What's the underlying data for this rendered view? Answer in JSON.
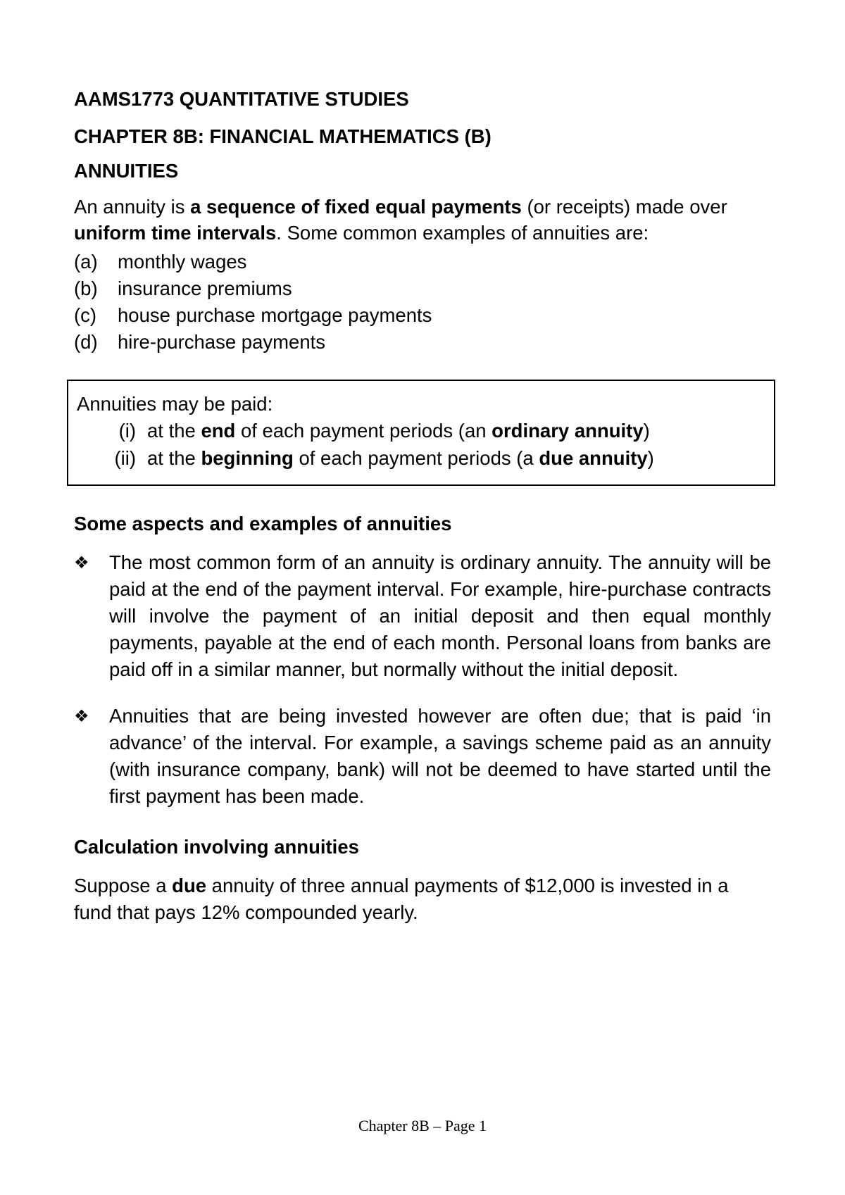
{
  "course_code": "AAMS1773 QUANTITATIVE STUDIES",
  "chapter_title": "CHAPTER 8B: FINANCIAL MATHEMATICS (B)",
  "topic": "ANNUITIES",
  "intro": {
    "prefix": "An annuity is ",
    "bold1": "a sequence of fixed equal payments",
    "mid1": " (or receipts) made over ",
    "bold2": "uniform time intervals",
    "suffix": ". Some common examples of annuities are:"
  },
  "examples": [
    {
      "marker": "(a)",
      "text": "monthly wages"
    },
    {
      "marker": "(b)",
      "text": "insurance premiums"
    },
    {
      "marker": "(c)",
      "text": "house purchase mortgage payments"
    },
    {
      "marker": "(d)",
      "text": "hire-purchase payments"
    }
  ],
  "box": {
    "lead": "Annuities may be paid:",
    "items": [
      {
        "marker": "(i)",
        "prefix": "at the ",
        "bold1": "end",
        "mid": " of each payment periods (an ",
        "bold2": "ordinary annuity",
        "suffix": ")"
      },
      {
        "marker": "(ii)",
        "prefix": "at the ",
        "bold1": "beginning",
        "mid": " of each payment periods (a ",
        "bold2": "due annuity",
        "suffix": ")"
      }
    ]
  },
  "aspects_heading": "Some aspects and examples of annuities",
  "bullets": [
    "The most common form of an annuity is ordinary annuity. The annuity will be paid at the end of the payment interval. For example, hire-purchase contracts will involve the payment of an initial deposit and then equal monthly payments, payable at the end of each month. Personal loans from banks are paid off in a similar manner, but normally without the initial deposit.",
    "Annuities that are being invested however are often due; that is paid ‘in advance’ of the interval. For example, a savings scheme paid as an annuity (with insurance company, bank) will not be deemed to have started until the first payment has been made."
  ],
  "calc_heading": "Calculation involving annuities",
  "calc": {
    "prefix": "Suppose a ",
    "bold": "due",
    "suffix": " annuity of three annual payments of $12,000 is invested in a fund that pays 12% compounded yearly."
  },
  "footer": "Chapter 8B – Page 1",
  "bullet_glyph": "❖"
}
